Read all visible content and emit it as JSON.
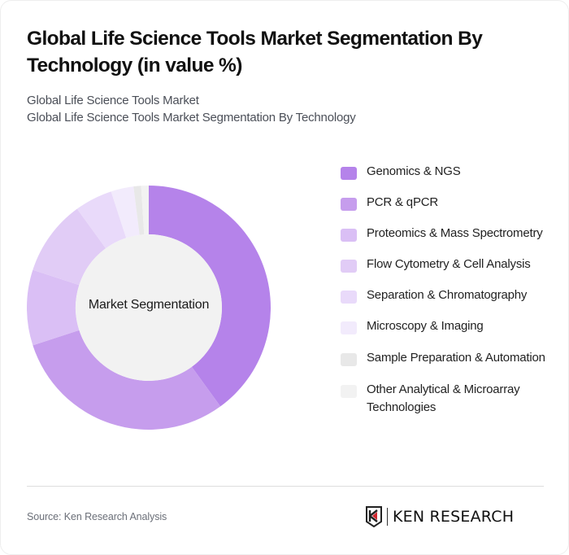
{
  "header": {
    "title": "Global Life Science Tools Market Segmentation By Technology (in value %)",
    "subtitle_line1": "Global Life Science Tools Market",
    "subtitle_line2": "Global Life Science Tools Market Segmentation By Technology"
  },
  "center_label": "Market Segmentation",
  "legend": [
    {
      "label": "Genomics & NGS",
      "color": "#b583ea"
    },
    {
      "label": "PCR & qPCR",
      "color": "#c69ded"
    },
    {
      "label": "Proteomics & Mass Spectrometry",
      "color": "#dabff5"
    },
    {
      "label": "Flow Cytometry & Cell Analysis",
      "color": "#e1ccf6"
    },
    {
      "label": "Separation & Chromatography",
      "color": "#e9dafa"
    },
    {
      "label": "Microscopy & Imaging",
      "color": "#f2ebfc"
    },
    {
      "label": "Sample Preparation & Automation",
      "color": "#e8e8e8"
    },
    {
      "label": "Other Analytical & Microarray Technologies",
      "color": "#f2f2f2"
    }
  ],
  "footer": {
    "source": "Source: Ken Research Analysis",
    "logo_text": "KEN RESEARCH"
  },
  "chart_data": {
    "type": "pie",
    "subtype": "donut",
    "title": "Global Life Science Tools Market Segmentation By Technology (in value %)",
    "center_label": "Market Segmentation",
    "categories": [
      "Genomics & NGS",
      "PCR & qPCR",
      "Proteomics & Mass Spectrometry",
      "Flow Cytometry & Cell Analysis",
      "Separation & Chromatography",
      "Microscopy & Imaging",
      "Sample Preparation & Automation",
      "Other Analytical & Microarray Technologies"
    ],
    "values": [
      40,
      30,
      10,
      10,
      5,
      3,
      1,
      1
    ],
    "unit": "%",
    "colors": [
      "#b583ea",
      "#c69ded",
      "#dabff5",
      "#e1ccf6",
      "#e9dafa",
      "#f2ebfc",
      "#e8e8e8",
      "#f2f2f2"
    ],
    "legend_position": "right",
    "start_angle": "top, clockwise"
  }
}
